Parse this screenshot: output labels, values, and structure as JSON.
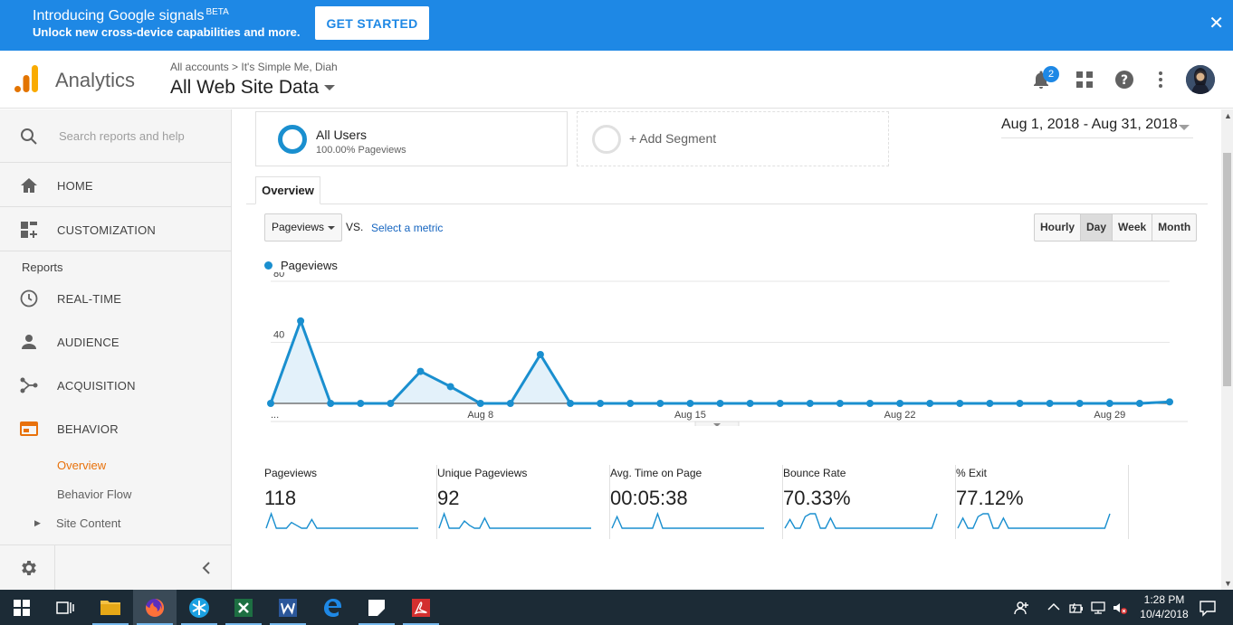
{
  "banner": {
    "title": "Introducing Google signals",
    "beta": "BETA",
    "subtitle": "Unlock new cross-device capabilities and more.",
    "cta": "GET STARTED",
    "close": "✕"
  },
  "header": {
    "app_name": "Analytics",
    "breadcrumb": "All accounts > It's Simple Me, Diah",
    "property": "All Web Site Data",
    "notification_count": "2"
  },
  "sidebar": {
    "search_placeholder": "Search reports and help",
    "home": "HOME",
    "customization": "CUSTOMIZATION",
    "reports_label": "Reports",
    "realtime": "REAL-TIME",
    "audience": "AUDIENCE",
    "acquisition": "ACQUISITION",
    "behavior": "BEHAVIOR",
    "sub_overview": "Overview",
    "sub_behavior_flow": "Behavior Flow",
    "sub_site_content": "Site Content",
    "accent_color": "#e8710a"
  },
  "segments": {
    "all_users": "All Users",
    "all_users_sub": "100.00% Pageviews",
    "add_segment": "+ Add Segment"
  },
  "date_range": "Aug 1, 2018 - Aug 31, 2018",
  "tabs": {
    "overview": "Overview"
  },
  "controls": {
    "metric": "Pageviews",
    "vs": "VS.",
    "select_metric": "Select a metric",
    "granularity": [
      "Hourly",
      "Day",
      "Week",
      "Month"
    ],
    "active_granularity": "Day"
  },
  "chart_data": {
    "type": "area",
    "series": [
      {
        "name": "Pageviews",
        "color": "#1a8fcf",
        "values": [
          0,
          54,
          0,
          0,
          0,
          21,
          11,
          0,
          0,
          32,
          0,
          0,
          0,
          0,
          0,
          0,
          0,
          0,
          0,
          0,
          0,
          0,
          0,
          0,
          0,
          0,
          0,
          0,
          0,
          0,
          1
        ]
      }
    ],
    "x_tick_labels": [
      {
        "index": 0,
        "label": "..."
      },
      {
        "index": 7,
        "label": "Aug 8"
      },
      {
        "index": 14,
        "label": "Aug 15"
      },
      {
        "index": 21,
        "label": "Aug 22"
      },
      {
        "index": 28,
        "label": "Aug 29"
      }
    ],
    "y_ticks": [
      40,
      80
    ],
    "ylim": [
      0,
      80
    ],
    "legend_position": "top-left"
  },
  "scorecards": [
    {
      "label": "Pageviews",
      "value": "118",
      "spark": [
        0,
        10,
        0,
        0,
        0,
        4,
        2,
        0,
        0,
        6,
        0,
        0,
        0,
        0,
        0,
        0,
        0,
        0,
        0,
        0,
        0,
        0,
        0,
        0,
        0,
        0,
        0,
        0,
        0,
        0,
        0
      ]
    },
    {
      "label": "Unique Pageviews",
      "value": "92",
      "spark": [
        0,
        10,
        0,
        0,
        0,
        5,
        2,
        0,
        0,
        7,
        0,
        0,
        0,
        0,
        0,
        0,
        0,
        0,
        0,
        0,
        0,
        0,
        0,
        0,
        0,
        0,
        0,
        0,
        0,
        0,
        0
      ]
    },
    {
      "label": "Avg. Time on Page",
      "value": "00:05:38",
      "spark": [
        0,
        8,
        0,
        0,
        0,
        0,
        0,
        0,
        0,
        10,
        0,
        0,
        0,
        0,
        0,
        0,
        0,
        0,
        0,
        0,
        0,
        0,
        0,
        0,
        0,
        0,
        0,
        0,
        0,
        0,
        0
      ]
    },
    {
      "label": "Bounce Rate",
      "value": "70.33%",
      "spark": [
        0,
        6,
        0,
        0,
        8,
        10,
        10,
        0,
        0,
        7,
        0,
        0,
        0,
        0,
        0,
        0,
        0,
        0,
        0,
        0,
        0,
        0,
        0,
        0,
        0,
        0,
        0,
        0,
        0,
        0,
        10
      ]
    },
    {
      "label": "% Exit",
      "value": "77.12%",
      "spark": [
        0,
        7,
        0,
        0,
        8,
        10,
        10,
        0,
        0,
        7,
        0,
        0,
        0,
        0,
        0,
        0,
        0,
        0,
        0,
        0,
        0,
        0,
        0,
        0,
        0,
        0,
        0,
        0,
        0,
        0,
        10
      ]
    }
  ],
  "taskbar": {
    "time": "1:28 PM",
    "date": "10/4/2018"
  }
}
